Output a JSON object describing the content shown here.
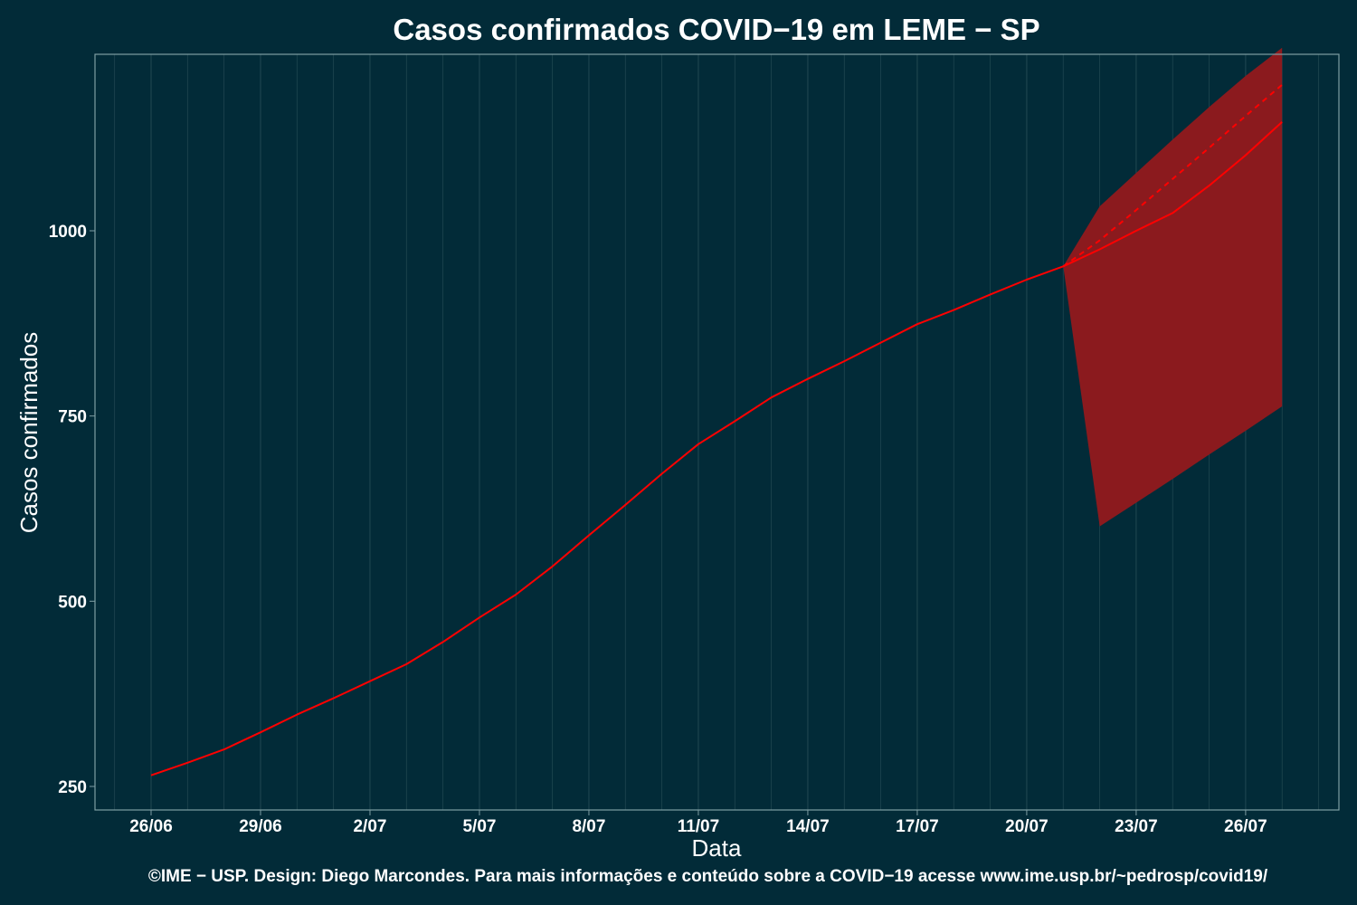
{
  "chart_data": {
    "type": "line",
    "title": "Casos confirmados COVID−19 em LEME − SP",
    "xlabel": "Data",
    "ylabel": "Casos confirmados",
    "x_tick_labels": [
      "26/06",
      "29/06",
      "2/07",
      "5/07",
      "8/07",
      "11/07",
      "14/07",
      "17/07",
      "20/07",
      "23/07",
      "26/07"
    ],
    "y_ticks": [
      250,
      500,
      750,
      1000
    ],
    "ylim": [
      220,
      1250
    ],
    "grid": "vertical",
    "colors": {
      "background": "#022b38",
      "line": "#ff0000",
      "band": "#8b1a1e",
      "grid": "#1f4650",
      "frame": "#7f9ea3"
    },
    "series": [
      {
        "type": "observed",
        "x": [
          "26/06",
          "27/06",
          "28/06",
          "29/06",
          "30/06",
          "1/07",
          "2/07",
          "3/07",
          "4/07",
          "5/07",
          "6/07",
          "7/07",
          "8/07",
          "9/07",
          "10/07",
          "11/07",
          "12/07",
          "13/07",
          "14/07",
          "15/07",
          "16/07",
          "17/07",
          "18/07",
          "19/07",
          "20/07",
          "21/07"
        ],
        "values": [
          265,
          282,
          300,
          323,
          347,
          369,
          392,
          415,
          445,
          478,
          509,
          547,
          589,
          630,
          672,
          712,
          743,
          775,
          800,
          824,
          849,
          874,
          893,
          914,
          934,
          952
        ]
      },
      {
        "type": "prediction",
        "x": [
          "21/07",
          "22/07",
          "23/07",
          "24/07",
          "25/07",
          "26/07",
          "27/07"
        ],
        "values": [
          952,
          975,
          1000,
          1024,
          1061,
          1102,
          1147
        ]
      },
      {
        "type": "trend",
        "x": [
          "21/07",
          "22/07",
          "23/07",
          "24/07",
          "25/07",
          "26/07",
          "27/07"
        ],
        "values": [
          952,
          987,
          1028,
          1070,
          1112,
          1155,
          1197
        ]
      },
      {
        "type": "band",
        "x": [
          "21/07",
          "22/07",
          "23/07",
          "24/07",
          "25/07",
          "26/07",
          "27/07"
        ],
        "lower": [
          952,
          601,
          633,
          665,
          698,
          730,
          763
        ],
        "upper": [
          952,
          1033,
          1078,
          1123,
          1167,
          1209,
          1247
        ]
      }
    ]
  },
  "footer": "©IME − USP. Design: Diego Marcondes. Para mais informações e conteúdo sobre a COVID−19 acesse www.ime.usp.br/~pedrosp/covid19/"
}
